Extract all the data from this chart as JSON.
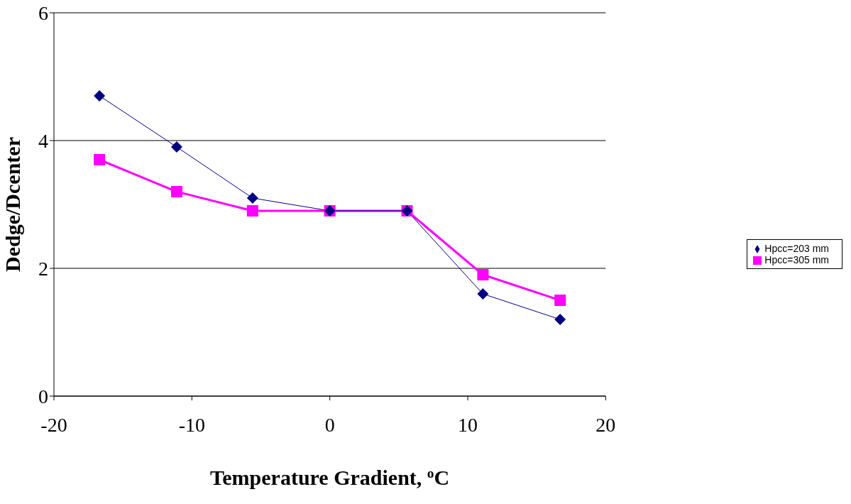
{
  "chart_data": {
    "type": "line",
    "xlabel": "Temperature Gradient, $^{o}$C",
    "ylabel": "Dedge/Dcenter",
    "xlim": [
      -20,
      20
    ],
    "xticks": [
      -20,
      -10,
      0,
      10,
      20
    ],
    "ylim": [
      0,
      6
    ],
    "yticks": [
      0,
      2,
      4,
      6
    ],
    "grid": "y",
    "legend": "right",
    "series": [
      {
        "name": "Hpcc=203 mm",
        "color": "#000080",
        "marker": "diamond",
        "x": [
          -16.7,
          -11.1,
          -5.6,
          0,
          5.6,
          11.1,
          16.7
        ],
        "values": [
          4.7,
          3.9,
          3.1,
          2.9,
          2.9,
          1.6,
          1.2
        ]
      },
      {
        "name": "Hpcc=305 mm",
        "color": "#ff00ff",
        "marker": "square",
        "x": [
          -16.7,
          -11.1,
          -5.6,
          0,
          5.6,
          11.1,
          16.7
        ],
        "values": [
          3.7,
          3.2,
          2.9,
          2.9,
          2.9,
          1.9,
          1.5
        ]
      }
    ]
  }
}
